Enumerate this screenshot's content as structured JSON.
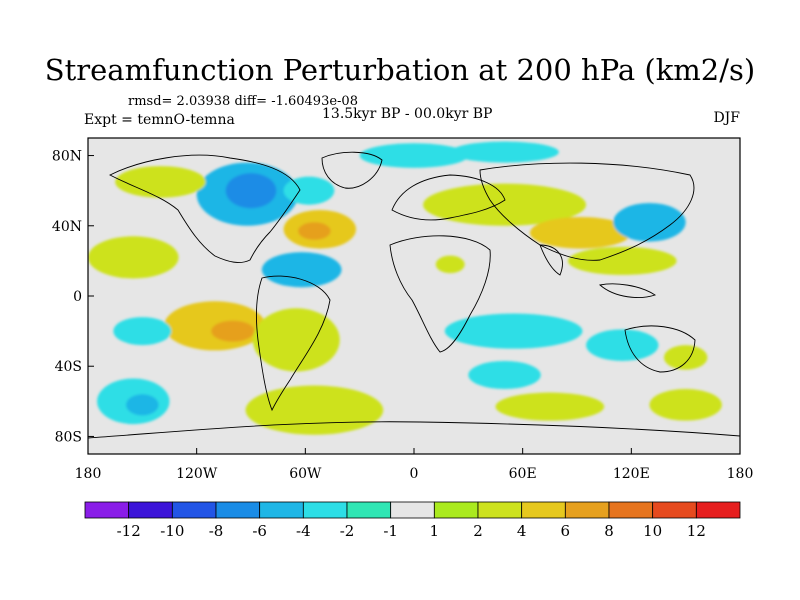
{
  "chart_data": {
    "type": "heatmap",
    "title": "Streamfunction Perturbation at 200 hPa (km2/s)",
    "stats_text": "rmsd= 2.03938 diff= -1.60493e-08",
    "experiment": "Expt = temnO-temna",
    "period": "13.5kyr BP - 00.0kyr BP",
    "season": "DJF",
    "xlim": [
      -180,
      180
    ],
    "ylim": [
      -90,
      90
    ],
    "x_ticks": [
      {
        "value": -180,
        "label": "180"
      },
      {
        "value": -120,
        "label": "120W"
      },
      {
        "value": -60,
        "label": "60W"
      },
      {
        "value": 0,
        "label": "0"
      },
      {
        "value": 60,
        "label": "60E"
      },
      {
        "value": 120,
        "label": "120E"
      },
      {
        "value": 180,
        "label": "180"
      }
    ],
    "y_ticks": [
      {
        "value": 80,
        "label": "80N"
      },
      {
        "value": 40,
        "label": "40N"
      },
      {
        "value": 0,
        "label": "0"
      },
      {
        "value": -40,
        "label": "40S"
      },
      {
        "value": -80,
        "label": "80S"
      }
    ],
    "colorbar": {
      "colors": [
        "#8a1de8",
        "#3c14d8",
        "#2255e6",
        "#1a8ce6",
        "#1fb6e6",
        "#2ddee6",
        "#30e6b4",
        "#e6e6e6",
        "#aaea1e",
        "#cde21e",
        "#e6c81e",
        "#e6a01e",
        "#e6741e",
        "#e64a1e",
        "#e61e1e"
      ],
      "labels": [
        "-12",
        "-10",
        "-8",
        "-6",
        "-4",
        "-2",
        "-1",
        "1",
        "2",
        "4",
        "6",
        "8",
        "10",
        "12"
      ]
    },
    "regions": [
      {
        "name": "north-america-negative",
        "level": -5,
        "lon": -92,
        "lat": 58,
        "rlon": 28,
        "rlat": 18
      },
      {
        "name": "north-america-core",
        "level": -7,
        "lon": -90,
        "lat": 60,
        "rlon": 14,
        "rlat": 10
      },
      {
        "name": "north-atlantic-negative",
        "level": -3,
        "lon": -58,
        "lat": 60,
        "rlon": 14,
        "rlat": 8
      },
      {
        "name": "north-atlantic-positive",
        "level": 5,
        "lon": -52,
        "lat": 38,
        "rlon": 20,
        "rlat": 11
      },
      {
        "name": "north-atlantic-core",
        "level": 7,
        "lon": -55,
        "lat": 37,
        "rlon": 9,
        "rlat": 5
      },
      {
        "name": "subtropical-atlantic-negative",
        "level": -4,
        "lon": -62,
        "lat": 15,
        "rlon": 22,
        "rlat": 10
      },
      {
        "name": "subtropical-core",
        "level": -5,
        "lon": -55,
        "lat": 14,
        "rlon": 9,
        "rlat": 5
      },
      {
        "name": "east-pacific-positive",
        "level": 5,
        "lon": -110,
        "lat": -17,
        "rlon": 28,
        "rlat": 14
      },
      {
        "name": "east-pacific-core",
        "level": 7,
        "lon": -100,
        "lat": -20,
        "rlon": 12,
        "rlat": 6
      },
      {
        "name": "south-atlantic-positive",
        "level": 3,
        "lon": -65,
        "lat": -25,
        "rlon": 24,
        "rlat": 18
      },
      {
        "name": "southern-ocean-positive",
        "level": 2,
        "lon": -55,
        "lat": -65,
        "rlon": 38,
        "rlat": 14
      },
      {
        "name": "south-pacific-negative",
        "level": -3,
        "lon": -155,
        "lat": -60,
        "rlon": 20,
        "rlat": 13
      },
      {
        "name": "south-pacific-core",
        "level": -4,
        "lon": -150,
        "lat": -62,
        "rlon": 9,
        "rlat": 6
      },
      {
        "name": "central-pacific-negative",
        "level": -2,
        "lon": -150,
        "lat": -20,
        "rlon": 16,
        "rlat": 8
      },
      {
        "name": "north-pacific-positive",
        "level": 3,
        "lon": -155,
        "lat": 22,
        "rlon": 25,
        "rlat": 12
      },
      {
        "name": "alaska-positive",
        "level": 3,
        "lon": -140,
        "lat": 65,
        "rlon": 25,
        "rlat": 9
      },
      {
        "name": "arctic-negative",
        "level": -2,
        "lon": 0,
        "lat": 80,
        "rlon": 30,
        "rlat": 7
      },
      {
        "name": "siberia-negative",
        "level": -2,
        "lon": 50,
        "lat": 82,
        "rlon": 30,
        "rlat": 6
      },
      {
        "name": "eurasia-positive",
        "level": 3,
        "lon": 50,
        "lat": 52,
        "rlon": 45,
        "rlat": 12
      },
      {
        "name": "asia-positive",
        "level": 4,
        "lon": 92,
        "lat": 36,
        "rlon": 28,
        "rlat": 9
      },
      {
        "name": "west-pacific-negative",
        "level": -4,
        "lon": 130,
        "lat": 42,
        "rlon": 20,
        "rlat": 11
      },
      {
        "name": "west-pacific-core",
        "level": -5,
        "lon": 132,
        "lat": 42,
        "rlon": 8,
        "rlat": 5
      },
      {
        "name": "tropical-asia-positive",
        "level": 3,
        "lon": 115,
        "lat": 20,
        "rlon": 30,
        "rlat": 8
      },
      {
        "name": "africa-positive",
        "level": 2,
        "lon": 20,
        "lat": 18,
        "rlon": 8,
        "rlat": 5
      },
      {
        "name": "indian-ocean-negative",
        "level": -2,
        "lon": 55,
        "lat": -20,
        "rlon": 38,
        "rlat": 10
      },
      {
        "name": "southern-indian-negative",
        "level": -3,
        "lon": 50,
        "lat": -45,
        "rlon": 20,
        "rlat": 8
      },
      {
        "name": "australia-negative",
        "level": -3,
        "lon": 115,
        "lat": -28,
        "rlon": 20,
        "rlat": 9
      },
      {
        "name": "tasman-positive",
        "level": 3,
        "lon": 150,
        "lat": -35,
        "rlon": 12,
        "rlat": 7
      },
      {
        "name": "south-indian-positive",
        "level": 2,
        "lon": 75,
        "lat": -63,
        "rlon": 30,
        "rlat": 8
      },
      {
        "name": "south-pacific-positive",
        "level": 2,
        "lon": 150,
        "lat": -62,
        "rlon": 20,
        "rlat": 9
      }
    ]
  }
}
